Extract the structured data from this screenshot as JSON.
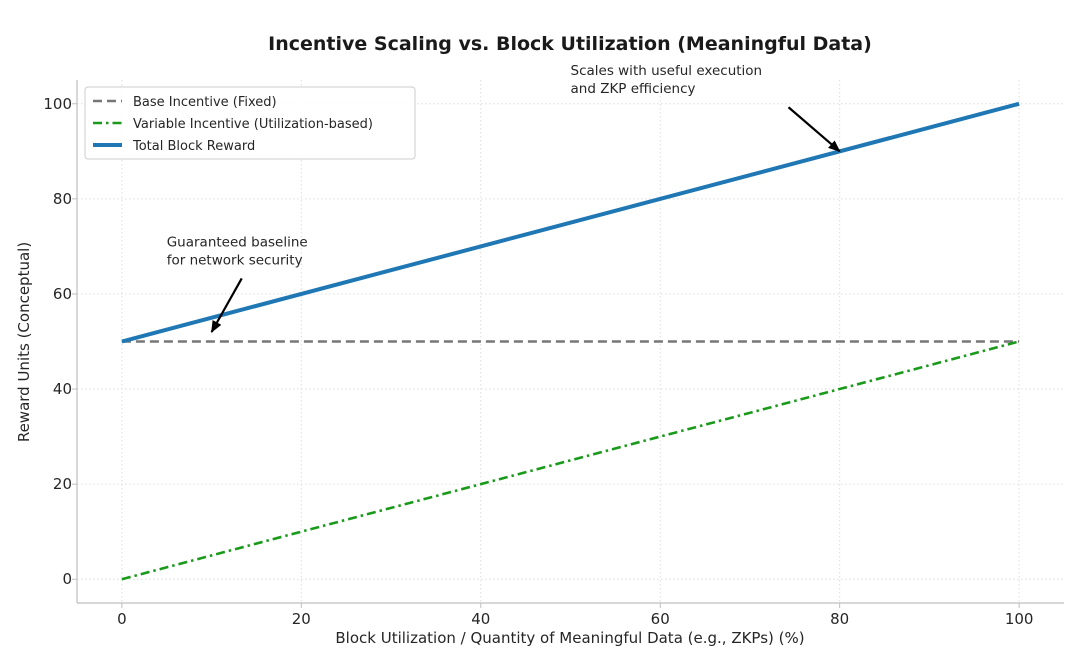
{
  "chart_data": {
    "type": "line",
    "title": "Incentive Scaling vs. Block Utilization (Meaningful Data)",
    "xlabel": "Block Utilization / Quantity of Meaningful Data (e.g., ZKPs) (%)",
    "ylabel": "Reward Units (Conceptual)",
    "xlim": [
      -5,
      105
    ],
    "ylim": [
      -5,
      105
    ],
    "xticks": [
      0,
      20,
      40,
      60,
      80,
      100
    ],
    "yticks": [
      0,
      20,
      40,
      60,
      80,
      100
    ],
    "grid": true,
    "legend_position": "top-left",
    "series": [
      {
        "name": "Base Incentive (Fixed)",
        "style": "dashed",
        "color": "#777777",
        "x": [
          0,
          100
        ],
        "y": [
          50,
          50
        ]
      },
      {
        "name": "Variable Incentive (Utilization-based)",
        "style": "dashdot",
        "color": "#1a9a1a",
        "x": [
          0,
          100
        ],
        "y": [
          0,
          50
        ]
      },
      {
        "name": "Total Block Reward",
        "style": "solid",
        "color": "#1f77b4",
        "x": [
          0,
          100
        ],
        "y": [
          50,
          100
        ]
      }
    ],
    "annotations": [
      {
        "lines": [
          "Scales with useful execution",
          "and ZKP efficiency"
        ],
        "text_at": [
          50,
          106
        ],
        "point": [
          80,
          90
        ]
      },
      {
        "lines": [
          "Guaranteed baseline",
          "for network security"
        ],
        "text_at": [
          5,
          70
        ],
        "point": [
          10,
          52
        ]
      }
    ]
  }
}
